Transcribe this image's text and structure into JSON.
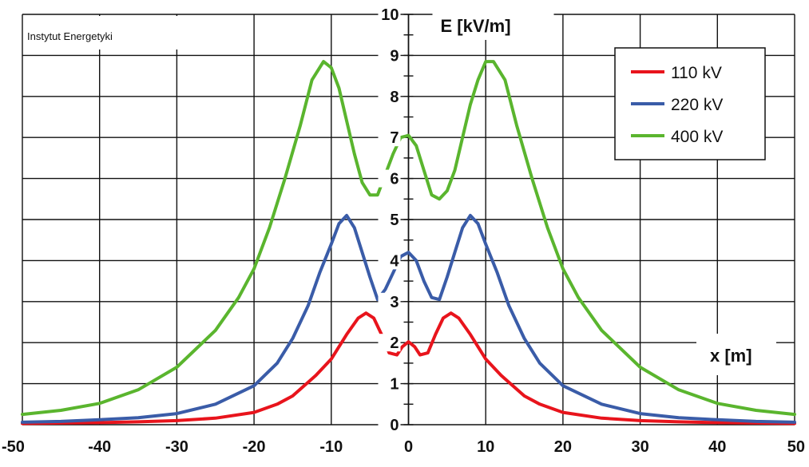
{
  "chart_data": {
    "type": "line",
    "annotation": "Instytut Energetyki",
    "ylabel": "E [kV/m]",
    "xlabel": "x [m]",
    "xlim": [
      -50,
      50
    ],
    "ylim": [
      0,
      10
    ],
    "x_ticks": [
      "-50",
      "-40",
      "-30",
      "-20",
      "-10",
      "0",
      "10",
      "20",
      "30",
      "40",
      "50"
    ],
    "y_ticks": [
      "0",
      "1",
      "2",
      "3",
      "4",
      "5",
      "6",
      "7",
      "8",
      "9",
      "10"
    ],
    "grid": true,
    "legend_position": "top-right",
    "series": [
      {
        "name": "110 kV",
        "color": "#e8141c",
        "points": [
          [
            -50,
            0.03
          ],
          [
            -45,
            0.04
          ],
          [
            -40,
            0.05
          ],
          [
            -35,
            0.07
          ],
          [
            -30,
            0.1
          ],
          [
            -25,
            0.16
          ],
          [
            -20,
            0.3
          ],
          [
            -17,
            0.5
          ],
          [
            -15,
            0.7
          ],
          [
            -12,
            1.2
          ],
          [
            -10,
            1.6
          ],
          [
            -8,
            2.2
          ],
          [
            -6.5,
            2.6
          ],
          [
            -5.5,
            2.72
          ],
          [
            -4.5,
            2.6
          ],
          [
            -3.5,
            2.2
          ],
          [
            -2.5,
            1.75
          ],
          [
            -1.5,
            1.7
          ],
          [
            -0.8,
            1.9
          ],
          [
            0,
            2.02
          ],
          [
            0.8,
            1.9
          ],
          [
            1.5,
            1.7
          ],
          [
            2.5,
            1.75
          ],
          [
            3.5,
            2.2
          ],
          [
            4.5,
            2.6
          ],
          [
            5.5,
            2.72
          ],
          [
            6.5,
            2.6
          ],
          [
            8,
            2.2
          ],
          [
            10,
            1.6
          ],
          [
            12,
            1.2
          ],
          [
            15,
            0.7
          ],
          [
            17,
            0.5
          ],
          [
            20,
            0.3
          ],
          [
            25,
            0.16
          ],
          [
            30,
            0.1
          ],
          [
            35,
            0.07
          ],
          [
            40,
            0.05
          ],
          [
            45,
            0.04
          ],
          [
            50,
            0.03
          ]
        ]
      },
      {
        "name": "220 kV",
        "color": "#3a5ca8",
        "points": [
          [
            -50,
            0.06
          ],
          [
            -45,
            0.08
          ],
          [
            -40,
            0.12
          ],
          [
            -35,
            0.17
          ],
          [
            -30,
            0.27
          ],
          [
            -25,
            0.5
          ],
          [
            -20,
            0.95
          ],
          [
            -17,
            1.5
          ],
          [
            -15,
            2.1
          ],
          [
            -13,
            2.9
          ],
          [
            -11.5,
            3.7
          ],
          [
            -10,
            4.4
          ],
          [
            -9,
            4.9
          ],
          [
            -8,
            5.1
          ],
          [
            -7,
            4.8
          ],
          [
            -6,
            4.2
          ],
          [
            -5,
            3.6
          ],
          [
            -4,
            3.05
          ],
          [
            -3,
            3.3
          ],
          [
            -2,
            3.7
          ],
          [
            -1,
            4.1
          ],
          [
            0,
            4.2
          ],
          [
            1,
            4.0
          ],
          [
            2,
            3.5
          ],
          [
            3,
            3.1
          ],
          [
            4,
            3.05
          ],
          [
            5,
            3.6
          ],
          [
            6,
            4.2
          ],
          [
            7,
            4.8
          ],
          [
            8,
            5.1
          ],
          [
            9,
            4.9
          ],
          [
            10,
            4.4
          ],
          [
            11.5,
            3.7
          ],
          [
            13,
            2.9
          ],
          [
            15,
            2.1
          ],
          [
            17,
            1.5
          ],
          [
            20,
            0.95
          ],
          [
            25,
            0.5
          ],
          [
            30,
            0.27
          ],
          [
            35,
            0.17
          ],
          [
            40,
            0.12
          ],
          [
            45,
            0.08
          ],
          [
            50,
            0.06
          ]
        ]
      },
      {
        "name": "400 kV",
        "color": "#5ab52e",
        "points": [
          [
            -50,
            0.25
          ],
          [
            -45,
            0.35
          ],
          [
            -40,
            0.52
          ],
          [
            -35,
            0.85
          ],
          [
            -30,
            1.4
          ],
          [
            -25,
            2.3
          ],
          [
            -22,
            3.1
          ],
          [
            -20,
            3.8
          ],
          [
            -18,
            4.8
          ],
          [
            -16,
            6.0
          ],
          [
            -14,
            7.3
          ],
          [
            -12.5,
            8.4
          ],
          [
            -11,
            8.85
          ],
          [
            -10,
            8.7
          ],
          [
            -9,
            8.2
          ],
          [
            -8,
            7.4
          ],
          [
            -7,
            6.6
          ],
          [
            -6,
            5.9
          ],
          [
            -5,
            5.6
          ],
          [
            -4,
            5.6
          ],
          [
            -3,
            6.1
          ],
          [
            -2,
            6.6
          ],
          [
            -1,
            7.0
          ],
          [
            0,
            7.05
          ],
          [
            1,
            6.8
          ],
          [
            2,
            6.2
          ],
          [
            3,
            5.6
          ],
          [
            4,
            5.5
          ],
          [
            5,
            5.7
          ],
          [
            6,
            6.2
          ],
          [
            7,
            7.0
          ],
          [
            8,
            7.8
          ],
          [
            9,
            8.4
          ],
          [
            10,
            8.85
          ],
          [
            11,
            8.85
          ],
          [
            12.5,
            8.4
          ],
          [
            14,
            7.3
          ],
          [
            16,
            6.0
          ],
          [
            18,
            4.8
          ],
          [
            20,
            3.8
          ],
          [
            22,
            3.1
          ],
          [
            25,
            2.3
          ],
          [
            30,
            1.4
          ],
          [
            35,
            0.85
          ],
          [
            40,
            0.52
          ],
          [
            45,
            0.35
          ],
          [
            50,
            0.25
          ]
        ]
      }
    ]
  }
}
